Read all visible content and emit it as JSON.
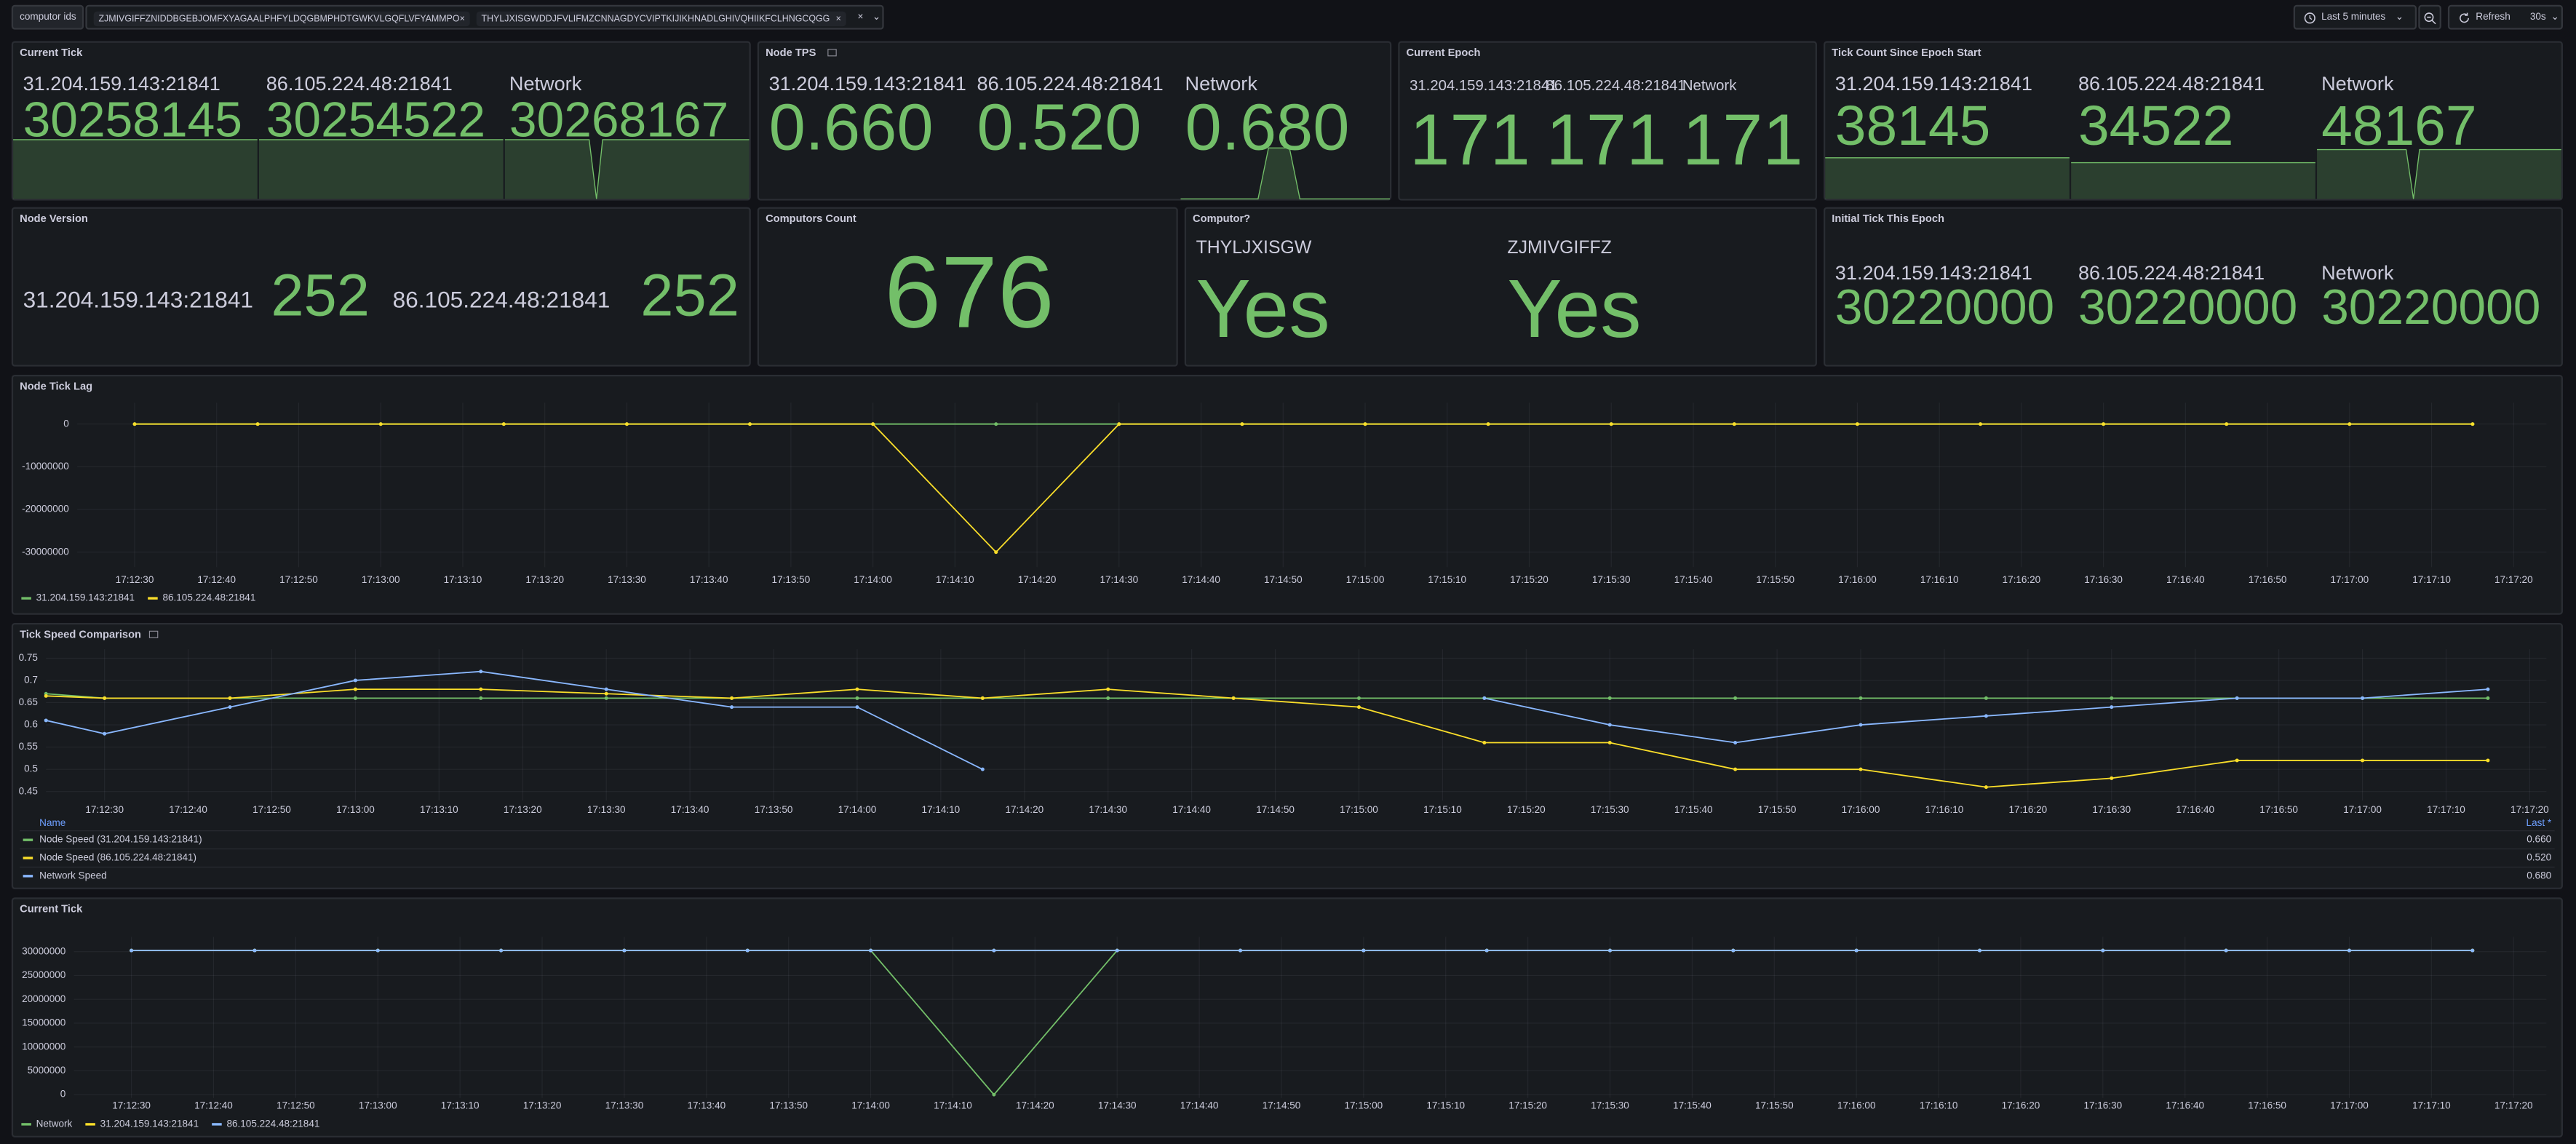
{
  "toolbar": {
    "variable_label": "computor ids",
    "chips": [
      "ZJMIVGIFFZNIDDBGEBJOMFXYAGAALPHFYLDQGBMPHDTGWKVLGQFLVFYAMMPO",
      "THYLJXISGWDDJFVLIFMZCNNAGDYCVIPTKIJIKHNADLGHIVQHIIKFCLHNGCQGG"
    ],
    "time_range": "Last 5 minutes",
    "refresh": "Refresh",
    "refresh_interval": "30s"
  },
  "stat_panels": [
    {
      "title": "Current Tick",
      "items": [
        {
          "label": "31.204.159.143:21841",
          "value": 30258145
        },
        {
          "label": "86.105.224.48:21841",
          "value": 30254522
        },
        {
          "label": "Network",
          "value": 30268167
        }
      ]
    },
    {
      "title": "Node TPS",
      "items": [
        {
          "label": "31.204.159.143:21841",
          "value": "0.660"
        },
        {
          "label": "86.105.224.48:21841",
          "value": "0.520"
        },
        {
          "label": "Network",
          "value": "0.680"
        }
      ]
    },
    {
      "title": "Current Epoch",
      "items": [
        {
          "label": "31.204.159.143:21841",
          "value": 171
        },
        {
          "label": "86.105.224.48:21841",
          "value": 171
        },
        {
          "label": "Network",
          "value": 171
        }
      ]
    },
    {
      "title": "Tick Count Since Epoch Start",
      "items": [
        {
          "label": "31.204.159.143:21841",
          "value": 38145
        },
        {
          "label": "86.105.224.48:21841",
          "value": 34522
        },
        {
          "label": "Network",
          "value": 48167
        }
      ]
    },
    {
      "title": "Node Version",
      "items": [
        {
          "label": "31.204.159.143:21841",
          "value": 252
        },
        {
          "label": "86.105.224.48:21841",
          "value": 252
        }
      ]
    },
    {
      "title": "Computors Count",
      "items": [
        {
          "value": 676
        }
      ]
    },
    {
      "title": "Computor?",
      "items": [
        {
          "label": "THYLJXISGW",
          "value": "Yes"
        },
        {
          "label": "ZJMIVGIFFZ",
          "value": "Yes"
        }
      ]
    },
    {
      "title": "Initial Tick This Epoch",
      "items": [
        {
          "label": "31.204.159.143:21841",
          "value": 30220000
        },
        {
          "label": "86.105.224.48:21841",
          "value": 30220000
        },
        {
          "label": "Network",
          "value": 30220000
        }
      ]
    }
  ],
  "chart_data": [
    {
      "type": "line",
      "title": "Node Tick Lag",
      "grid": true,
      "legend": "bottom",
      "xlim": [
        "17:12:23",
        "17:17:24"
      ],
      "ylim": [
        -33500000,
        5000000
      ],
      "yticks": [
        0,
        -10000000,
        -20000000,
        -30000000
      ],
      "xticks": [
        "17:12:30",
        "17:12:40",
        "17:12:50",
        "17:13:00",
        "17:13:10",
        "17:13:20",
        "17:13:30",
        "17:13:40",
        "17:13:50",
        "17:14:00",
        "17:14:10",
        "17:14:20",
        "17:14:30",
        "17:14:40",
        "17:14:50",
        "17:15:00",
        "17:15:10",
        "17:15:20",
        "17:15:30",
        "17:15:40",
        "17:15:50",
        "17:16:00",
        "17:16:10",
        "17:16:20",
        "17:16:30",
        "17:16:40",
        "17:16:50",
        "17:17:00",
        "17:17:10",
        "17:17:20"
      ],
      "x": [
        "17:12:30",
        "17:12:45",
        "17:13:00",
        "17:13:15",
        "17:13:30",
        "17:13:45",
        "17:14:00",
        "17:14:15",
        "17:14:30",
        "17:14:45",
        "17:15:00",
        "17:15:15",
        "17:15:30",
        "17:15:45",
        "17:16:00",
        "17:16:15",
        "17:16:30",
        "17:16:45",
        "17:17:00",
        "17:17:15"
      ],
      "series": [
        {
          "name": "31.204.159.143:21841",
          "color": "#73bf69",
          "values": [
            0,
            0,
            0,
            0,
            0,
            0,
            0,
            0,
            0,
            0,
            0,
            0,
            0,
            0,
            0,
            0,
            0,
            0,
            0,
            0
          ]
        },
        {
          "name": "86.105.224.48:21841",
          "color": "#fade2a",
          "values": [
            0,
            0,
            0,
            0,
            0,
            0,
            0,
            -30000000,
            0,
            0,
            0,
            0,
            0,
            0,
            0,
            0,
            0,
            0,
            0,
            0
          ]
        }
      ]
    },
    {
      "type": "line",
      "title": "Tick Speed Comparison",
      "grid": true,
      "legend": "table",
      "legend_columns": [
        "Name",
        "Last *"
      ],
      "xlim": [
        "17:12:23",
        "17:17:22"
      ],
      "ylim": [
        0.43,
        0.77
      ],
      "yticks": [
        0.45,
        0.5,
        0.55,
        0.6,
        0.65,
        0.7,
        0.75
      ],
      "xticks": [
        "17:12:30",
        "17:12:40",
        "17:12:50",
        "17:13:00",
        "17:13:10",
        "17:13:20",
        "17:13:30",
        "17:13:40",
        "17:13:50",
        "17:14:00",
        "17:14:10",
        "17:14:20",
        "17:14:30",
        "17:14:40",
        "17:14:50",
        "17:15:00",
        "17:15:10",
        "17:15:20",
        "17:15:30",
        "17:15:40",
        "17:15:50",
        "17:16:00",
        "17:16:10",
        "17:16:20",
        "17:16:30",
        "17:16:40",
        "17:16:50",
        "17:17:00",
        "17:17:10",
        "17:17:20"
      ],
      "x": [
        "17:12:23",
        "17:12:30",
        "17:12:45",
        "17:13:00",
        "17:13:15",
        "17:13:30",
        "17:13:45",
        "17:14:00",
        "17:14:15",
        "17:14:30",
        "17:14:45",
        "17:15:00",
        "17:15:15",
        "17:15:30",
        "17:15:45",
        "17:16:00",
        "17:16:15",
        "17:16:30",
        "17:16:45",
        "17:17:00",
        "17:17:15"
      ],
      "series": [
        {
          "name": "Node Speed (31.204.159.143:21841)",
          "color": "#73bf69",
          "last": "0.660",
          "values": [
            0.67,
            0.66,
            0.66,
            0.66,
            0.66,
            0.66,
            0.66,
            0.66,
            0.66,
            0.66,
            0.66,
            0.66,
            0.66,
            0.66,
            0.66,
            0.66,
            0.66,
            0.66,
            0.66,
            0.66,
            0.66
          ]
        },
        {
          "name": "Node Speed (86.105.224.48:21841)",
          "color": "#fade2a",
          "last": "0.520",
          "values": [
            0.665,
            0.66,
            0.66,
            0.68,
            0.68,
            0.67,
            0.66,
            0.68,
            0.66,
            0.68,
            0.66,
            0.64,
            0.56,
            0.56,
            0.5,
            0.5,
            0.46,
            0.48,
            0.52,
            0.52,
            0.52
          ]
        },
        {
          "name": "Network Speed",
          "color": "#8ab8ff",
          "last": "0.680",
          "values": [
            0.61,
            0.58,
            0.64,
            0.7,
            0.72,
            0.68,
            0.64,
            0.64,
            0.5,
            null,
            null,
            null,
            0.66,
            0.6,
            0.56,
            0.6,
            0.62,
            0.64,
            0.66,
            0.66,
            0.68
          ]
        }
      ]
    },
    {
      "type": "line",
      "title": "Current Tick",
      "grid": true,
      "legend": "bottom",
      "xlim": [
        "17:12:23",
        "17:17:24"
      ],
      "ylim": [
        -700000,
        33100000
      ],
      "yticks": [
        0,
        5000000,
        10000000,
        15000000,
        20000000,
        25000000,
        30000000
      ],
      "xticks": [
        "17:12:30",
        "17:12:40",
        "17:12:50",
        "17:13:00",
        "17:13:10",
        "17:13:20",
        "17:13:30",
        "17:13:40",
        "17:13:50",
        "17:14:00",
        "17:14:10",
        "17:14:20",
        "17:14:30",
        "17:14:40",
        "17:14:50",
        "17:15:00",
        "17:15:10",
        "17:15:20",
        "17:15:30",
        "17:15:40",
        "17:15:50",
        "17:16:00",
        "17:16:10",
        "17:16:20",
        "17:16:30",
        "17:16:40",
        "17:16:50",
        "17:17:00",
        "17:17:10",
        "17:17:20"
      ],
      "x": [
        "17:12:30",
        "17:12:45",
        "17:13:00",
        "17:13:15",
        "17:13:30",
        "17:13:45",
        "17:14:00",
        "17:14:15",
        "17:14:30",
        "17:14:45",
        "17:15:00",
        "17:15:15",
        "17:15:30",
        "17:15:45",
        "17:16:00",
        "17:16:15",
        "17:16:30",
        "17:16:45",
        "17:17:00",
        "17:17:15"
      ],
      "series": [
        {
          "name": "Network",
          "color": "#73bf69",
          "values": [
            30250000,
            30250000,
            30250000,
            30250000,
            30250000,
            30250000,
            30250000,
            0,
            30250000,
            30250000,
            30250000,
            30250000,
            30250000,
            30250000,
            30250000,
            30250000,
            30250000,
            30250000,
            30250000,
            30250000
          ]
        },
        {
          "name": "31.204.159.143:21841",
          "color": "#fade2a",
          "values": [
            30250000,
            30250000,
            30250000,
            30250000,
            30250000,
            30250000,
            30250000,
            30250000,
            30250000,
            30250000,
            30250000,
            30250000,
            30250000,
            30250000,
            30250000,
            30250000,
            30250000,
            30250000,
            30250000,
            30250000
          ]
        },
        {
          "name": "86.105.224.48:21841",
          "color": "#8ab8ff",
          "values": [
            30250000,
            30250000,
            30250000,
            30250000,
            30250000,
            30250000,
            30250000,
            30250000,
            30250000,
            30250000,
            30250000,
            30250000,
            30250000,
            30250000,
            30250000,
            30250000,
            30250000,
            30250000,
            30250000,
            30250000
          ]
        }
      ]
    }
  ]
}
